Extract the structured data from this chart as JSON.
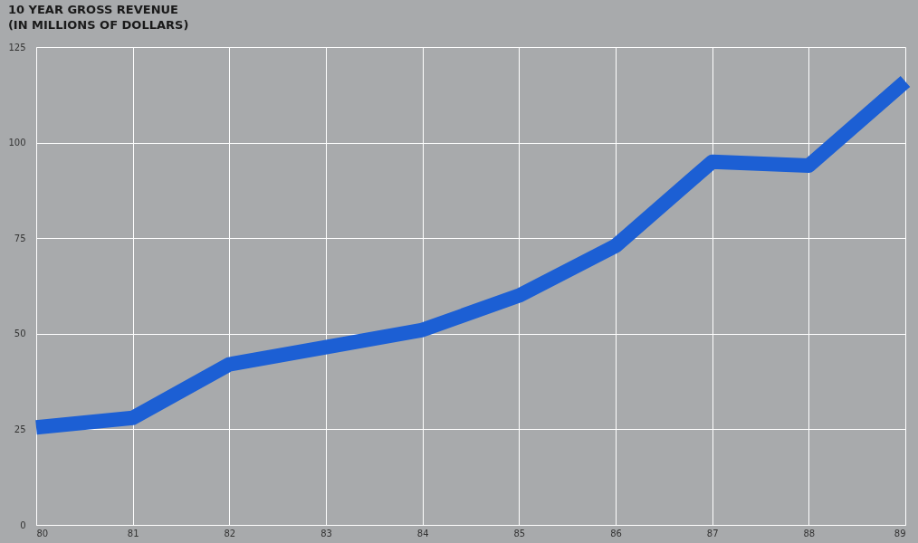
{
  "chart_data": {
    "type": "line",
    "title": "10 YEAR GROSS REVENUE",
    "subtitle": "(IN MILLIONS OF DOLLARS)",
    "x": [
      80,
      81,
      82,
      83,
      84,
      85,
      86,
      87,
      88,
      89
    ],
    "series": [
      {
        "color": "#1c5fd4",
        "values": [
          25.5,
          28,
          42,
          46.5,
          51,
          60,
          73,
          95,
          94,
          116
        ]
      }
    ],
    "xlim": [
      80,
      89
    ],
    "xticks": [
      80,
      81,
      82,
      83,
      84,
      85,
      86,
      87,
      88,
      89
    ],
    "ylim": [
      0,
      125
    ],
    "yticks": [
      0,
      25,
      50,
      75,
      100,
      125
    ],
    "grid": true,
    "marker": "none",
    "line_style": "solid"
  }
}
